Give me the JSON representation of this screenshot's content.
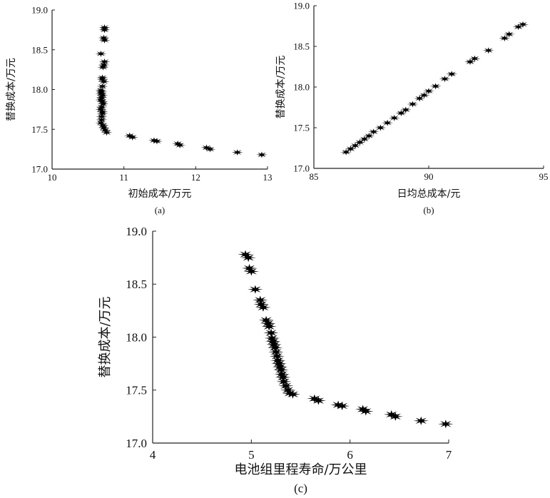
{
  "chart_data": [
    {
      "type": "scatter",
      "panel_label": "(a)",
      "xlabel": "初始成本/万元",
      "ylabel": "替换成本/万元",
      "xlim": [
        10,
        13
      ],
      "ylim": [
        17.0,
        19.0
      ],
      "xticks": [
        "10",
        "11",
        "12",
        "13"
      ],
      "yticks": [
        "17.0",
        "17.5",
        "18.0",
        "18.5",
        "19.0"
      ],
      "grid": false,
      "marker": "star",
      "marker_color": "#000000",
      "points": [
        [
          10.73,
          18.78
        ],
        [
          10.73,
          18.75
        ],
        [
          10.72,
          18.65
        ],
        [
          10.73,
          18.62
        ],
        [
          10.68,
          18.45
        ],
        [
          10.73,
          18.35
        ],
        [
          10.72,
          18.31
        ],
        [
          10.71,
          18.28
        ],
        [
          10.7,
          18.15
        ],
        [
          10.7,
          18.13
        ],
        [
          10.72,
          18.1
        ],
        [
          10.7,
          18.04
        ],
        [
          10.68,
          17.99
        ],
        [
          10.69,
          17.97
        ],
        [
          10.68,
          17.95
        ],
        [
          10.7,
          17.93
        ],
        [
          10.69,
          17.9
        ],
        [
          10.68,
          17.87
        ],
        [
          10.7,
          17.85
        ],
        [
          10.71,
          17.82
        ],
        [
          10.69,
          17.78
        ],
        [
          10.68,
          17.75
        ],
        [
          10.7,
          17.72
        ],
        [
          10.7,
          17.7
        ],
        [
          10.69,
          17.66
        ],
        [
          10.69,
          17.62
        ],
        [
          10.68,
          17.58
        ],
        [
          10.71,
          17.55
        ],
        [
          10.72,
          17.52
        ],
        [
          10.74,
          17.49
        ],
        [
          10.76,
          17.46
        ],
        [
          11.08,
          17.42
        ],
        [
          11.12,
          17.4
        ],
        [
          11.42,
          17.36
        ],
        [
          11.46,
          17.35
        ],
        [
          11.75,
          17.32
        ],
        [
          11.78,
          17.3
        ],
        [
          12.15,
          17.27
        ],
        [
          12.2,
          17.25
        ],
        [
          12.58,
          17.21
        ],
        [
          12.92,
          17.18
        ]
      ]
    },
    {
      "type": "scatter",
      "panel_label": "(b)",
      "xlabel": "日均总成本/元",
      "ylabel": "替换成本/万元",
      "xlim": [
        85,
        95
      ],
      "ylim": [
        17.0,
        19.0
      ],
      "xticks": [
        "85",
        "90",
        "95"
      ],
      "yticks": [
        "17.0",
        "17.5",
        "18.0",
        "18.5",
        "19.0"
      ],
      "grid": false,
      "marker": "star",
      "marker_color": "#000000",
      "points": [
        [
          86.4,
          17.2
        ],
        [
          86.6,
          17.24
        ],
        [
          86.8,
          17.28
        ],
        [
          87.0,
          17.32
        ],
        [
          87.2,
          17.36
        ],
        [
          87.4,
          17.4
        ],
        [
          87.6,
          17.45
        ],
        [
          87.9,
          17.5
        ],
        [
          88.2,
          17.56
        ],
        [
          88.5,
          17.62
        ],
        [
          88.8,
          17.68
        ],
        [
          89.0,
          17.72
        ],
        [
          89.3,
          17.79
        ],
        [
          89.6,
          17.86
        ],
        [
          89.8,
          17.9
        ],
        [
          90.0,
          17.95
        ],
        [
          90.3,
          18.01
        ],
        [
          90.7,
          18.1
        ],
        [
          91.0,
          18.16
        ],
        [
          91.8,
          18.31
        ],
        [
          92.0,
          18.35
        ],
        [
          92.6,
          18.45
        ],
        [
          93.3,
          18.6
        ],
        [
          93.5,
          18.65
        ],
        [
          93.9,
          18.74
        ],
        [
          94.1,
          18.77
        ]
      ]
    },
    {
      "type": "scatter",
      "panel_label": "(c)",
      "xlabel": "电池组里程寿命/万公里",
      "ylabel": "替换成本/万元",
      "xlim": [
        4,
        7
      ],
      "ylim": [
        17.0,
        19.0
      ],
      "xticks": [
        "4",
        "5",
        "6",
        "7"
      ],
      "yticks": [
        "17.0",
        "17.5",
        "18.0",
        "18.5",
        "19.0"
      ],
      "grid": false,
      "marker": "star",
      "marker_color": "#000000",
      "points": [
        [
          4.94,
          18.78
        ],
        [
          4.97,
          18.75
        ],
        [
          4.98,
          18.65
        ],
        [
          5.0,
          18.62
        ],
        [
          5.04,
          18.45
        ],
        [
          5.09,
          18.35
        ],
        [
          5.1,
          18.31
        ],
        [
          5.12,
          18.28
        ],
        [
          5.15,
          18.16
        ],
        [
          5.17,
          18.13
        ],
        [
          5.18,
          18.1
        ],
        [
          5.2,
          18.04
        ],
        [
          5.21,
          17.99
        ],
        [
          5.22,
          17.96
        ],
        [
          5.23,
          17.93
        ],
        [
          5.24,
          17.9
        ],
        [
          5.25,
          17.86
        ],
        [
          5.26,
          17.82
        ],
        [
          5.27,
          17.78
        ],
        [
          5.28,
          17.75
        ],
        [
          5.29,
          17.72
        ],
        [
          5.3,
          17.69
        ],
        [
          5.31,
          17.65
        ],
        [
          5.32,
          17.62
        ],
        [
          5.33,
          17.58
        ],
        [
          5.35,
          17.54
        ],
        [
          5.37,
          17.5
        ],
        [
          5.39,
          17.47
        ],
        [
          5.42,
          17.46
        ],
        [
          5.64,
          17.42
        ],
        [
          5.68,
          17.4
        ],
        [
          5.88,
          17.36
        ],
        [
          5.92,
          17.35
        ],
        [
          6.13,
          17.32
        ],
        [
          6.16,
          17.3
        ],
        [
          6.42,
          17.27
        ],
        [
          6.46,
          17.25
        ],
        [
          6.72,
          17.21
        ],
        [
          6.97,
          17.18
        ]
      ]
    }
  ]
}
